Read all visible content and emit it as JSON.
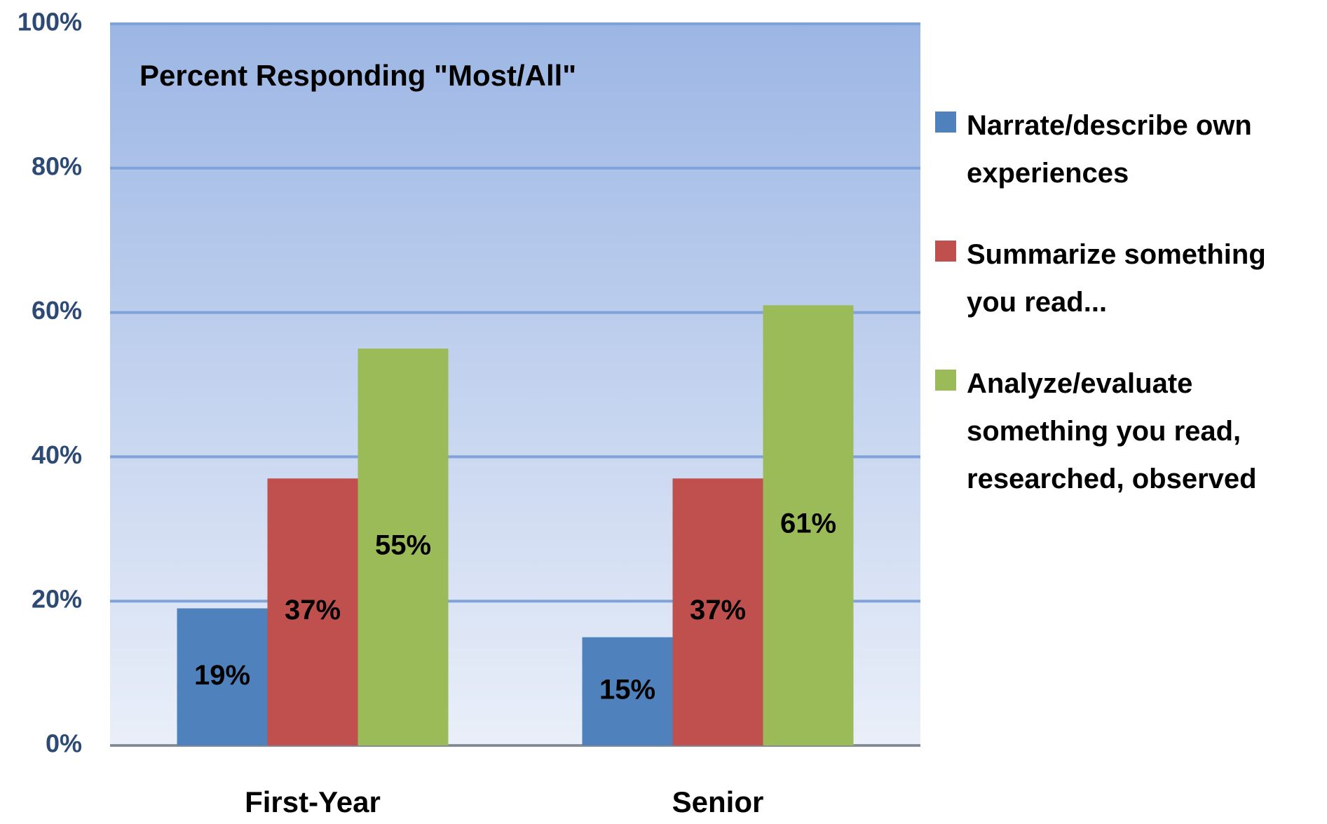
{
  "chart_data": {
    "type": "bar",
    "title": "Percent Responding \"Most/All\"",
    "categories": [
      "First-Year",
      "Senior"
    ],
    "series": [
      {
        "name": "Narrate/describe own experiences",
        "color": "#4f81bd",
        "values": [
          19,
          15
        ],
        "value_labels": [
          "19%",
          "15%"
        ]
      },
      {
        "name": "Summarize something you read...",
        "color": "#c0504d",
        "values": [
          37,
          37
        ],
        "value_labels": [
          "37%",
          "37%"
        ]
      },
      {
        "name": "Analyze/evaluate something you read, researched, observed",
        "color": "#9bbb59",
        "values": [
          55,
          61
        ],
        "value_labels": [
          "55%",
          "61%"
        ]
      }
    ],
    "ylim": [
      0,
      100
    ],
    "yticks": [
      {
        "value": 0,
        "label": "0%"
      },
      {
        "value": 20,
        "label": "20%"
      },
      {
        "value": 40,
        "label": "40%"
      },
      {
        "value": 60,
        "label": "60%"
      },
      {
        "value": 80,
        "label": "80%"
      },
      {
        "value": 100,
        "label": "100%"
      }
    ],
    "grid": true,
    "legend": "right"
  }
}
